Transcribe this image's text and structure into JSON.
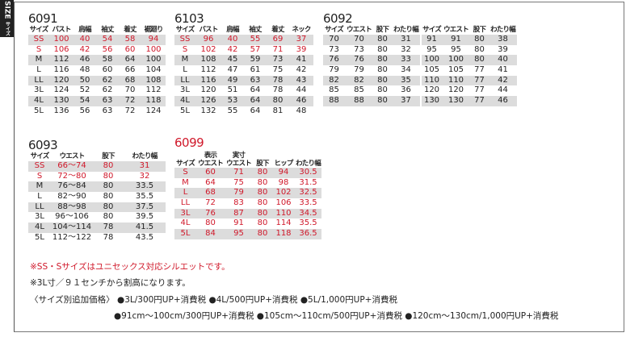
{
  "side_tab": {
    "label": "SIZE",
    "sub": "サイズ"
  },
  "tables": [
    {
      "title": "6091",
      "title_red": false,
      "headers": [
        "サイズ",
        "バスト",
        "肩幅",
        "袖丈",
        "着丈",
        "裾廻り"
      ],
      "rows": [
        [
          "SS",
          "100",
          "40",
          "54",
          "58",
          "94"
        ],
        [
          "S",
          "106",
          "42",
          "56",
          "60",
          "100"
        ],
        [
          "M",
          "112",
          "46",
          "58",
          "64",
          "100"
        ],
        [
          "L",
          "116",
          "48",
          "60",
          "66",
          "104"
        ],
        [
          "LL",
          "120",
          "50",
          "62",
          "68",
          "108"
        ],
        [
          "3L",
          "124",
          "52",
          "62",
          "70",
          "112"
        ],
        [
          "4L",
          "130",
          "54",
          "63",
          "72",
          "118"
        ],
        [
          "5L",
          "136",
          "56",
          "63",
          "72",
          "124"
        ]
      ],
      "red_rows": 2
    },
    {
      "title": "6103",
      "title_red": false,
      "headers": [
        "サイズ",
        "バスト",
        "肩幅",
        "袖丈",
        "着丈",
        "ネック"
      ],
      "rows": [
        [
          "SS",
          "96",
          "40",
          "55",
          "69",
          "37"
        ],
        [
          "S",
          "102",
          "42",
          "57",
          "71",
          "39"
        ],
        [
          "M",
          "108",
          "45",
          "59",
          "73",
          "41"
        ],
        [
          "L",
          "112",
          "47",
          "61",
          "75",
          "42"
        ],
        [
          "LL",
          "116",
          "49",
          "63",
          "78",
          "43"
        ],
        [
          "3L",
          "120",
          "51",
          "64",
          "78",
          "44"
        ],
        [
          "4L",
          "126",
          "53",
          "64",
          "80",
          "46"
        ],
        [
          "5L",
          "132",
          "55",
          "64",
          "81",
          "48"
        ]
      ],
      "red_rows": 2
    },
    {
      "title": "6092",
      "title_red": false,
      "headers": [
        "サイズ",
        "ウエスト",
        "股下",
        "わたり幅",
        "サイズ",
        "ウエスト",
        "股下",
        "わたり幅"
      ],
      "rows": [
        [
          "70",
          "70",
          "80",
          "31",
          "91",
          "91",
          "80",
          "38"
        ],
        [
          "73",
          "73",
          "80",
          "32",
          "95",
          "95",
          "80",
          "39"
        ],
        [
          "76",
          "76",
          "80",
          "33",
          "100",
          "100",
          "80",
          "40"
        ],
        [
          "79",
          "79",
          "80",
          "34",
          "105",
          "105",
          "77",
          "41"
        ],
        [
          "82",
          "82",
          "80",
          "35",
          "110",
          "110",
          "77",
          "42"
        ],
        [
          "85",
          "85",
          "80",
          "36",
          "120",
          "120",
          "77",
          "44"
        ],
        [
          "88",
          "88",
          "80",
          "37",
          "130",
          "130",
          "77",
          "46"
        ]
      ],
      "red_rows": 0
    },
    {
      "title": "6093",
      "title_red": false,
      "headers": [
        "サイズ",
        "ウエスト",
        "股下",
        "わたり幅"
      ],
      "rows": [
        [
          "SS",
          "66〜74",
          "80",
          "31"
        ],
        [
          "S",
          "72〜80",
          "80",
          "32"
        ],
        [
          "M",
          "76〜84",
          "80",
          "33.5"
        ],
        [
          "L",
          "82〜90",
          "80",
          "35.5"
        ],
        [
          "LL",
          "88〜98",
          "80",
          "37.5"
        ],
        [
          "3L",
          "96〜106",
          "80",
          "39.5"
        ],
        [
          "4L",
          "104〜114",
          "78",
          "41.5"
        ],
        [
          "5L",
          "112〜122",
          "78",
          "43.5"
        ]
      ],
      "red_rows": 2
    },
    {
      "title": "6099",
      "title_red": true,
      "headers": [
        "サイズ",
        "表示\nウエスト",
        "実寸\nウエスト",
        "股下",
        "ヒップ",
        "わたり幅"
      ],
      "rows": [
        [
          "S",
          "60",
          "71",
          "80",
          "94",
          "30.5"
        ],
        [
          "M",
          "64",
          "75",
          "80",
          "98",
          "31.5"
        ],
        [
          "L",
          "68",
          "79",
          "80",
          "102",
          "32.5"
        ],
        [
          "LL",
          "72",
          "83",
          "80",
          "106",
          "33.5"
        ],
        [
          "3L",
          "76",
          "87",
          "80",
          "110",
          "34.5"
        ],
        [
          "4L",
          "80",
          "91",
          "80",
          "114",
          "35.5"
        ],
        [
          "5L",
          "84",
          "95",
          "80",
          "118",
          "36.5"
        ]
      ],
      "red_rows": 7
    }
  ],
  "notes": {
    "unisex": "※SS・Sサイズはユニセックス対応シルエットです。",
    "surcharge": "※3L寸／９１センチから割高になります。",
    "price_label": "〈サイズ別追加価格〉",
    "price_line1": "●3L/300円UP+消費税 ●4L/500円UP+消費税 ●5L/1,000円UP+消費税",
    "price_line2": "●91cm〜100cm/300円UP+消費税 ●105cm〜110cm/500円UP+消費税 ●120cm〜130cm/1,000円UP+消費税"
  },
  "colors": {
    "accent_red": "#d0182a",
    "row_gray": "#dcdcdc"
  }
}
